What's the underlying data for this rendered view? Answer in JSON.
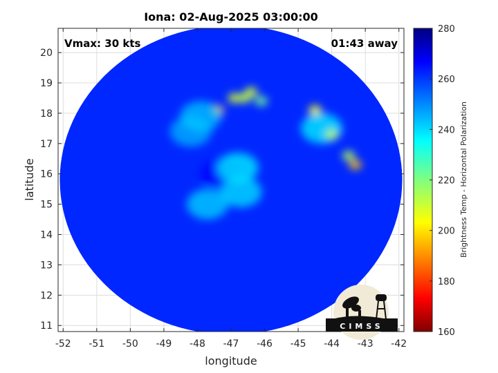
{
  "chart_data": {
    "type": "heatmap",
    "title": "Iona: 02-Aug-2025 03:00:00",
    "xlabel": "longitude",
    "ylabel": "latitude",
    "xlim": [
      -52.15,
      -41.85
    ],
    "ylim": [
      10.8,
      20.8
    ],
    "xticks": [
      "-52",
      "-51",
      "-50",
      "-49",
      "-48",
      "-47",
      "-46",
      "-45",
      "-44",
      "-43",
      "-42"
    ],
    "yticks": [
      "11",
      "12",
      "13",
      "14",
      "15",
      "16",
      "17",
      "18",
      "19",
      "20"
    ],
    "grid": true,
    "annotations": {
      "vmax": "Vmax: 30 kts",
      "time_offset": "01:43 away"
    },
    "colorbar": {
      "label": "Brightness Temp - Horizontal Polarization",
      "range": [
        160,
        280
      ],
      "ticks": [
        "280",
        "260",
        "240",
        "220",
        "200",
        "180",
        "160"
      ],
      "colormap": "jet"
    },
    "swath_center": [
      -47.0,
      15.8
    ],
    "swath_radius_deg": 5.1,
    "background_value": 262,
    "features": [
      {
        "lon": -47.3,
        "lat": 16.0,
        "value": 267,
        "note": "dark core"
      },
      {
        "lon": -44.3,
        "lat": 17.5,
        "value": 236,
        "note": "cool band"
      },
      {
        "lon": -44.0,
        "lat": 17.3,
        "value": 212
      },
      {
        "lon": -44.5,
        "lat": 18.1,
        "value": 204
      },
      {
        "lon": -43.3,
        "lat": 16.3,
        "value": 196
      },
      {
        "lon": -43.5,
        "lat": 16.6,
        "value": 214
      },
      {
        "lon": -47.4,
        "lat": 18.1,
        "value": 198
      },
      {
        "lon": -46.9,
        "lat": 18.5,
        "value": 208
      },
      {
        "lon": -46.6,
        "lat": 18.5,
        "value": 212
      },
      {
        "lon": -46.4,
        "lat": 18.7,
        "value": 210
      },
      {
        "lon": -46.1,
        "lat": 18.4,
        "value": 222
      },
      {
        "lon": -46.8,
        "lat": 16.2,
        "value": 236
      },
      {
        "lon": -46.7,
        "lat": 15.4,
        "value": 238
      },
      {
        "lon": -47.7,
        "lat": 15.0,
        "value": 240
      },
      {
        "lon": -48.2,
        "lat": 17.4,
        "value": 244
      },
      {
        "lon": -47.9,
        "lat": 17.9,
        "value": 242
      }
    ]
  },
  "logo": {
    "text": "CIMSS"
  },
  "colors": {
    "frame": "#262626",
    "grid": "#dcdcdc"
  }
}
